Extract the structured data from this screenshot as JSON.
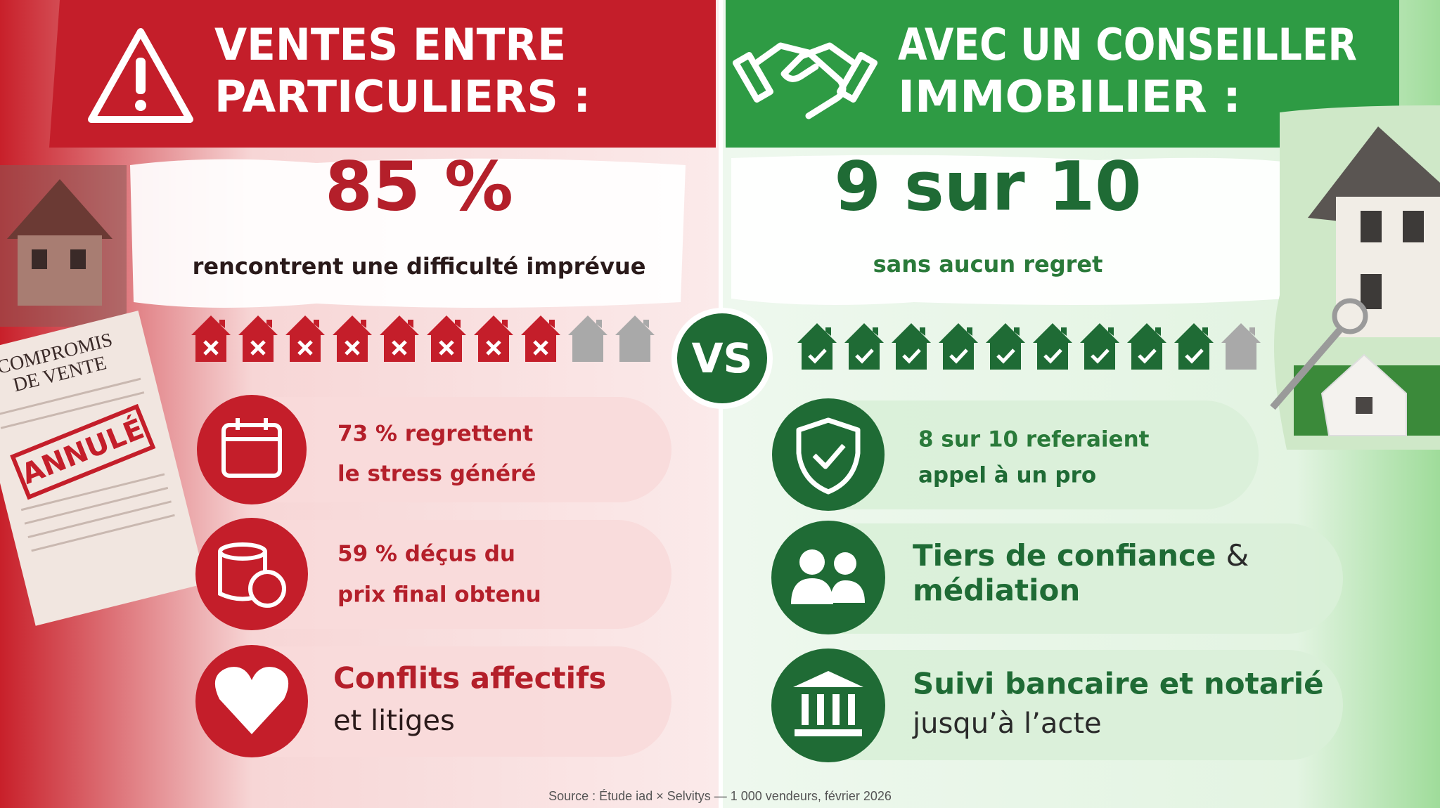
{
  "left": {
    "title": [
      "VENTES ENTRE",
      "PARTICULIERS :"
    ],
    "stat": "85 %",
    "caption": "rencontrent une difficulté imprévue",
    "document": {
      "title": [
        "COMPROMIS",
        "DE VENTE"
      ],
      "stamp": "ANNULÉ"
    },
    "items": [
      [
        "73 % regrettent",
        "le stress généré"
      ],
      [
        "59 % déçus du",
        "prix final obtenu"
      ],
      [
        "Conflits affectifs",
        "et litiges"
      ]
    ]
  },
  "vs": "VS",
  "right": {
    "title": [
      "AVEC UN CONSEILLER",
      "IMMOBILIER :"
    ],
    "stat": "9 sur 10",
    "caption": "sans aucun regret",
    "items": [
      [
        "8 sur 10 referaient",
        "appel à un pro"
      ],
      [
        "Tiers de confiance",
        "&",
        "médiation"
      ],
      [
        "Suivi bancaire et notarié",
        "jusqu’à l’acte"
      ]
    ]
  },
  "source": "Source : Étude iad × Selvitys — 1 000 vendeurs, février 2026"
}
